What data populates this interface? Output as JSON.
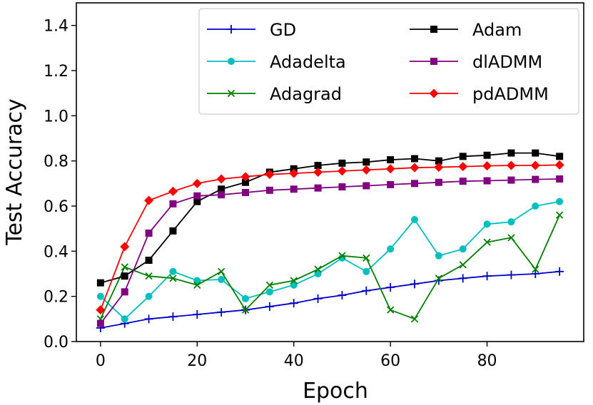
{
  "chart_data": {
    "type": "line",
    "title": "",
    "xlabel": "Epoch",
    "ylabel": "Test Accuracy",
    "xlim": [
      -5,
      100
    ],
    "ylim": [
      0.0,
      1.5
    ],
    "xticks": [
      0,
      20,
      40,
      60,
      80
    ],
    "yticks": [
      0.0,
      0.2,
      0.4,
      0.6,
      0.8,
      1.0,
      1.2,
      1.4
    ],
    "ytick_labels": [
      "0.0",
      "0.2",
      "0.4",
      "0.6",
      "0.8",
      "1.0",
      "1.2",
      "1.4"
    ],
    "grid": false,
    "legend_location": "top-right",
    "x": [
      0,
      5,
      10,
      15,
      20,
      25,
      30,
      35,
      40,
      45,
      50,
      55,
      60,
      65,
      70,
      75,
      80,
      85,
      90,
      95
    ],
    "series": [
      {
        "name": "GD",
        "color": "#0000cc",
        "marker": "plus",
        "values": [
          0.06,
          0.08,
          0.1,
          0.11,
          0.12,
          0.13,
          0.14,
          0.155,
          0.17,
          0.19,
          0.205,
          0.225,
          0.24,
          0.255,
          0.27,
          0.28,
          0.29,
          0.295,
          0.3,
          0.31
        ]
      },
      {
        "name": "Adadelta",
        "color": "#00bfbf",
        "marker": "circle",
        "values": [
          0.2,
          0.1,
          0.2,
          0.31,
          0.27,
          0.275,
          0.19,
          0.22,
          0.25,
          0.3,
          0.37,
          0.31,
          0.41,
          0.54,
          0.38,
          0.41,
          0.52,
          0.53,
          0.6,
          0.62
        ]
      },
      {
        "name": "Adagrad",
        "color": "#007f00",
        "marker": "x",
        "values": [
          0.1,
          0.33,
          0.29,
          0.28,
          0.25,
          0.31,
          0.14,
          0.25,
          0.27,
          0.32,
          0.38,
          0.37,
          0.14,
          0.1,
          0.28,
          0.34,
          0.44,
          0.46,
          0.32,
          0.56
        ]
      },
      {
        "name": "Adam",
        "color": "#000000",
        "marker": "square",
        "values": [
          0.26,
          0.29,
          0.36,
          0.49,
          0.62,
          0.675,
          0.705,
          0.75,
          0.765,
          0.78,
          0.79,
          0.795,
          0.805,
          0.81,
          0.8,
          0.82,
          0.825,
          0.835,
          0.835,
          0.82
        ]
      },
      {
        "name": "dlADMM",
        "color": "#800080",
        "marker": "square",
        "values": [
          0.08,
          0.22,
          0.48,
          0.61,
          0.645,
          0.65,
          0.66,
          0.67,
          0.675,
          0.68,
          0.685,
          0.69,
          0.695,
          0.7,
          0.705,
          0.71,
          0.712,
          0.715,
          0.718,
          0.72
        ]
      },
      {
        "name": "pdADMM",
        "color": "#ff0000",
        "marker": "diamond",
        "values": [
          0.14,
          0.42,
          0.625,
          0.665,
          0.7,
          0.72,
          0.73,
          0.74,
          0.745,
          0.75,
          0.755,
          0.76,
          0.765,
          0.77,
          0.772,
          0.775,
          0.778,
          0.78,
          0.78,
          0.782
        ]
      }
    ]
  }
}
